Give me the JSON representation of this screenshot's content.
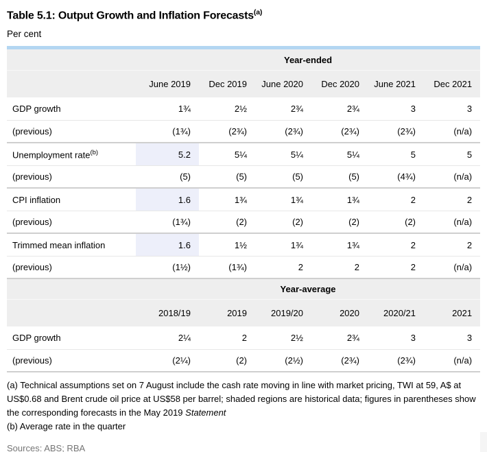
{
  "page": {
    "title_main": "Table 5.1: Output Growth and Inflation Forecasts",
    "title_sup": "(a)",
    "subtitle": "Per cent"
  },
  "colors": {
    "accent_bar": "#b3d6f2",
    "header_background": "#eeeeee",
    "shaded_historical_cell": "#edeffa",
    "row_divider": "#e7e7e7",
    "section_divider": "#cfcfcf",
    "sources_text": "#757575"
  },
  "year_ended": {
    "section_label": "Year-ended",
    "columns": [
      "June 2019",
      "Dec 2019",
      "June 2020",
      "Dec 2020",
      "June 2021",
      "Dec 2021"
    ],
    "rows": [
      {
        "label": "GDP growth",
        "label_sup": "",
        "shaded_first_cell": false,
        "cells": [
          "1¾",
          "2½",
          "2¾",
          "2¾",
          "3",
          "3"
        ]
      },
      {
        "label": "(previous)",
        "label_sup": "",
        "shaded_first_cell": false,
        "cells": [
          "(1¾)",
          "(2¾)",
          "(2¾)",
          "(2¾)",
          "(2¾)",
          "(n/a)"
        ]
      },
      {
        "label": "Unemployment rate",
        "label_sup": "(b)",
        "shaded_first_cell": true,
        "cells": [
          "5.2",
          "5¼",
          "5¼",
          "5¼",
          "5",
          "5"
        ]
      },
      {
        "label": "(previous)",
        "label_sup": "",
        "shaded_first_cell": false,
        "cells": [
          "(5)",
          "(5)",
          "(5)",
          "(5)",
          "(4¾)",
          "(n/a)"
        ]
      },
      {
        "label": "CPI inflation",
        "label_sup": "",
        "shaded_first_cell": true,
        "cells": [
          "1.6",
          "1¾",
          "1¾",
          "1¾",
          "2",
          "2"
        ]
      },
      {
        "label": "(previous)",
        "label_sup": "",
        "shaded_first_cell": false,
        "cells": [
          "(1¾)",
          "(2)",
          "(2)",
          "(2)",
          "(2)",
          "(n/a)"
        ]
      },
      {
        "label": "Trimmed mean inflation",
        "label_sup": "",
        "shaded_first_cell": true,
        "cells": [
          "1.6",
          "1½",
          "1¾",
          "1¾",
          "2",
          "2"
        ]
      },
      {
        "label": "(previous)",
        "label_sup": "",
        "shaded_first_cell": false,
        "cells": [
          "(1½)",
          "(1¾)",
          "2",
          "2",
          "2",
          "(n/a)"
        ]
      }
    ]
  },
  "year_average": {
    "section_label": "Year-average",
    "columns": [
      "2018/19",
      "2019",
      "2019/20",
      "2020",
      "2020/21",
      "2021"
    ],
    "rows": [
      {
        "label": "GDP growth",
        "label_sup": "",
        "shaded_first_cell": false,
        "cells": [
          "2¼",
          "2",
          "2½",
          "2¾",
          "3",
          "3"
        ]
      },
      {
        "label": "(previous)",
        "label_sup": "",
        "shaded_first_cell": false,
        "cells": [
          "(2¼)",
          "(2)",
          "(2½)",
          "(2¾)",
          "(2¾)",
          "(n/a)"
        ]
      }
    ]
  },
  "footnotes": {
    "a_text": "(a) Technical assumptions set on 7 August include the cash rate moving in line with market pricing, TWI at 59, A$ at US$0.68 and Brent crude oil price at US$58 per barrel; shaded regions are historical data; figures in parentheses show the corresponding forecasts in the May 2019 ",
    "a_italic": "Statement",
    "b_text": "(b) Average rate in the quarter",
    "sources": "Sources: ABS; RBA"
  }
}
